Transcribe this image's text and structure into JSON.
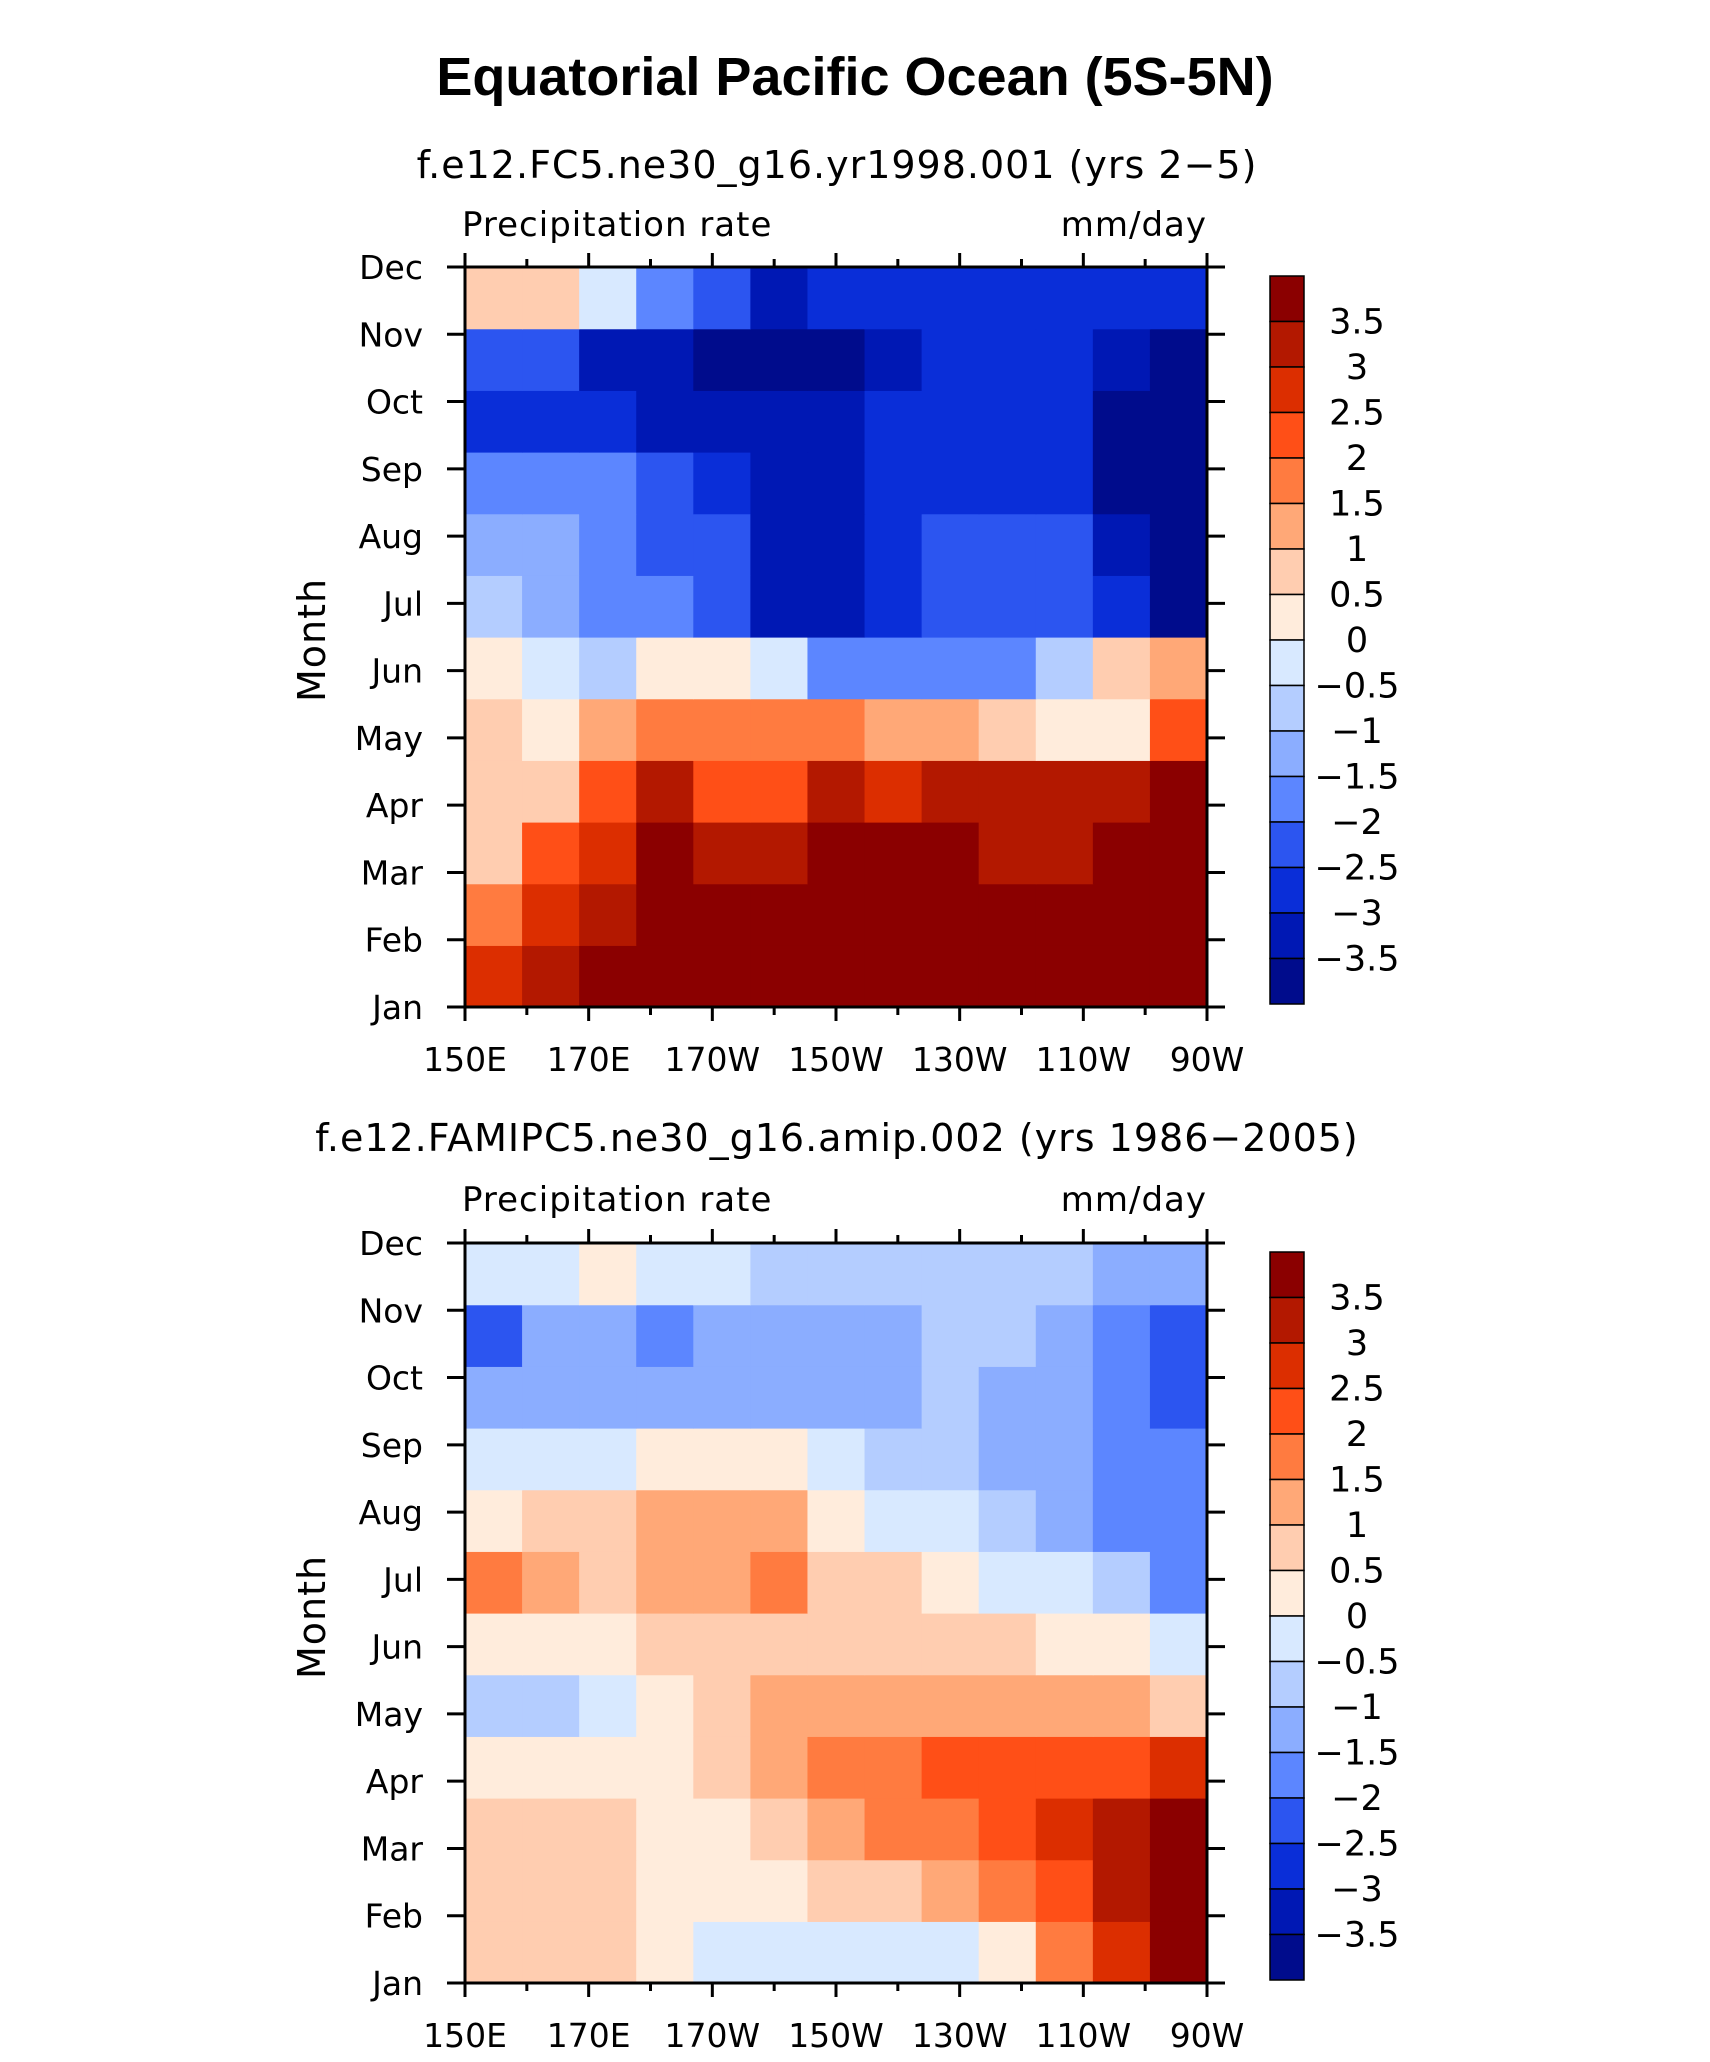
{
  "figure": {
    "title": "Equatorial Pacific Ocean (5S-5N)"
  },
  "colorbar": {
    "labels": [
      "3.5",
      "3",
      "2.5",
      "2",
      "1.5",
      "1",
      "0.5",
      "0",
      "−0.5",
      "−1",
      "−1.5",
      "−2",
      "−2.5",
      "−3",
      "−3.5"
    ],
    "levels": [
      3.5,
      3,
      2.5,
      2,
      1.5,
      1,
      0.5,
      0,
      -0.5,
      -1,
      -1.5,
      -2,
      -2.5,
      -3,
      -3.5
    ],
    "colors_top_to_bottom": [
      "#8b0000",
      "#b31800",
      "#dc2e00",
      "#ff4f17",
      "#ff7b40",
      "#ffa877",
      "#ffcdb0",
      "#ffecdc",
      "#d8e9ff",
      "#b4cdff",
      "#8badff",
      "#5c86ff",
      "#2c55f0",
      "#0a2ed8",
      "#0018b4",
      "#000c8c"
    ]
  },
  "chart_data": [
    {
      "type": "heatmap",
      "title": "f.e12.FC5.ne30_g16.yr1998.001 (yrs 2−5)",
      "left_label": "Precipitation rate",
      "right_label": "mm/day",
      "ylabel": "Month",
      "xlabel": "",
      "x": [
        "150E",
        "170E",
        "170W",
        "150W",
        "130W",
        "110W",
        "90W"
      ],
      "y": [
        "Jan",
        "Feb",
        "Mar",
        "Apr",
        "May",
        "Jun",
        "Jul",
        "Aug",
        "Sep",
        "Oct",
        "Nov",
        "Dec"
      ],
      "z": [
        [
          2.5,
          3.2,
          3.6,
          3.8,
          3.8,
          3.8,
          3.8,
          3.8,
          3.8,
          3.8,
          3.8,
          3.8,
          3.8
        ],
        [
          1.5,
          2.8,
          3.3,
          3.8,
          3.8,
          3.8,
          3.8,
          3.8,
          3.8,
          3.8,
          3.8,
          3.8,
          3.8
        ],
        [
          0.7,
          2.0,
          2.7,
          3.6,
          3.0,
          3.0,
          3.6,
          3.6,
          3.8,
          3.4,
          3.2,
          3.6,
          3.8
        ],
        [
          0.6,
          0.8,
          2.0,
          3.0,
          2.2,
          2.0,
          3.2,
          2.7,
          3.2,
          3.0,
          3.2,
          3.0,
          3.8
        ],
        [
          0.8,
          0.3,
          1.0,
          1.5,
          1.7,
          1.6,
          1.6,
          1.4,
          1.0,
          0.6,
          0.0,
          0.2,
          2.3
        ],
        [
          0.3,
          -0.5,
          -0.6,
          0.0,
          0.0,
          -0.3,
          -1.8,
          -2.0,
          -2.0,
          -2.0,
          -0.8,
          0.6,
          1.0
        ],
        [
          -1.0,
          -1.2,
          -1.8,
          -2.0,
          -2.2,
          -3.2,
          -3.5,
          -2.6,
          -2.3,
          -2.2,
          -2.5,
          -2.8,
          -3.7
        ],
        [
          -1.5,
          -1.5,
          -1.6,
          -2.2,
          -2.5,
          -3.3,
          -3.5,
          -3.0,
          -2.4,
          -2.1,
          -2.5,
          -3.4,
          -3.9
        ],
        [
          -1.6,
          -1.6,
          -1.6,
          -2.4,
          -2.6,
          -3.3,
          -3.3,
          -2.8,
          -2.7,
          -2.6,
          -2.7,
          -3.6,
          -3.9
        ],
        [
          -2.6,
          -2.7,
          -2.8,
          -3.1,
          -3.2,
          -3.3,
          -3.3,
          -3.0,
          -3.0,
          -2.7,
          -2.9,
          -3.7,
          -3.9
        ],
        [
          -2.2,
          -2.4,
          -3.3,
          -3.5,
          -3.7,
          -3.7,
          -3.6,
          -3.2,
          -2.8,
          -2.6,
          -2.8,
          -3.5,
          -3.8
        ],
        [
          0.5,
          0.6,
          -0.5,
          -2.0,
          -2.5,
          -3.2,
          -3.0,
          -2.6,
          -2.6,
          -2.7,
          -2.7,
          -2.8,
          -3.0
        ]
      ],
      "zlim": [
        -4,
        4
      ]
    },
    {
      "type": "heatmap",
      "title": "f.e12.FAMIPC5.ne30_g16.amip.002 (yrs 1986−2005)",
      "left_label": "Precipitation rate",
      "right_label": "mm/day",
      "ylabel": "Month",
      "xlabel": "",
      "x": [
        "150E",
        "170E",
        "170W",
        "150W",
        "130W",
        "110W",
        "90W"
      ],
      "y": [
        "Jan",
        "Feb",
        "Mar",
        "Apr",
        "May",
        "Jun",
        "Jul",
        "Aug",
        "Sep",
        "Oct",
        "Nov",
        "Dec"
      ],
      "z": [
        [
          0.8,
          0.8,
          0.6,
          0.3,
          -0.2,
          -0.3,
          -0.3,
          -0.3,
          -0.2,
          0.3,
          1.6,
          2.6,
          3.6
        ],
        [
          0.7,
          0.8,
          0.6,
          0.4,
          0.0,
          0.3,
          0.5,
          0.7,
          1.1,
          1.6,
          2.2,
          3.1,
          3.8
        ],
        [
          0.7,
          0.6,
          0.5,
          0.4,
          0.3,
          0.8,
          1.2,
          1.6,
          1.8,
          2.2,
          2.6,
          3.2,
          3.8
        ],
        [
          0.3,
          0.3,
          0.2,
          0.3,
          0.8,
          1.4,
          1.8,
          1.9,
          2.2,
          2.2,
          2.3,
          2.4,
          2.6
        ],
        [
          -0.6,
          -0.7,
          -0.4,
          0.2,
          0.6,
          1.2,
          1.0,
          1.3,
          1.4,
          1.3,
          1.4,
          1.2,
          0.9
        ],
        [
          0.4,
          0.3,
          0.3,
          0.5,
          0.8,
          0.9,
          0.8,
          0.9,
          0.8,
          0.6,
          0.4,
          0.2,
          -0.3
        ],
        [
          1.5,
          1.0,
          0.8,
          1.0,
          1.0,
          1.6,
          0.8,
          0.5,
          0.2,
          -0.2,
          -0.5,
          -0.8,
          -1.8
        ],
        [
          0.3,
          0.6,
          0.8,
          1.3,
          1.2,
          1.2,
          0.4,
          -0.2,
          -0.5,
          -0.8,
          -1.2,
          -1.8,
          -2.0
        ],
        [
          -0.4,
          -0.3,
          -0.3,
          0.2,
          0.4,
          0.2,
          -0.4,
          -0.7,
          -0.9,
          -1.2,
          -1.4,
          -1.8,
          -2.0
        ],
        [
          -1.5,
          -1.4,
          -1.4,
          -1.4,
          -1.4,
          -1.2,
          -1.2,
          -1.2,
          -0.9,
          -1.2,
          -1.3,
          -1.6,
          -2.2
        ],
        [
          -2.2,
          -1.4,
          -1.4,
          -1.8,
          -1.5,
          -1.3,
          -1.3,
          -1.2,
          -0.8,
          -1.0,
          -1.3,
          -1.7,
          -2.1
        ],
        [
          -0.4,
          -0.2,
          0.0,
          -0.2,
          -0.4,
          -0.6,
          -0.9,
          -1.0,
          -0.8,
          -0.9,
          -1.0,
          -1.1,
          -1.2
        ]
      ],
      "zlim": [
        -4,
        4
      ]
    }
  ]
}
